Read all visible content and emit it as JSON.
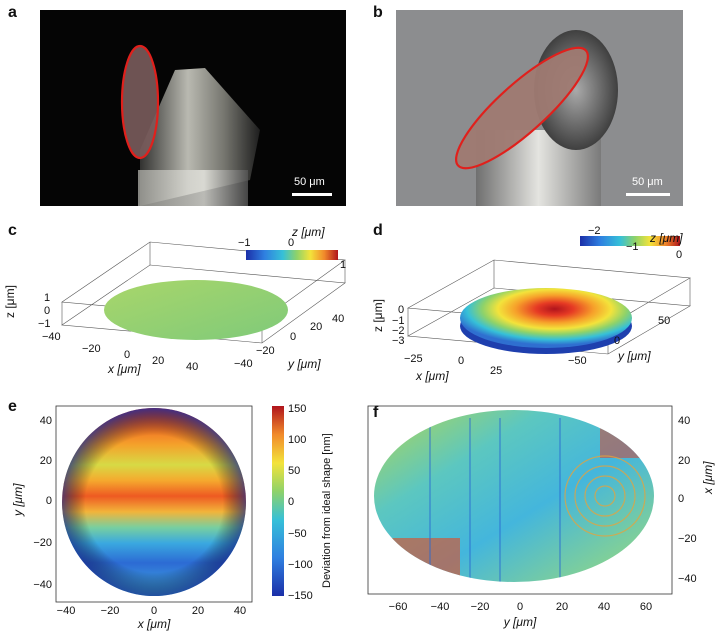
{
  "panels": {
    "a": {
      "letter": "a",
      "scale_label": "50 μm"
    },
    "b": {
      "letter": "b",
      "scale_label": "50 μm"
    },
    "c": {
      "letter": "c",
      "unit_label": "z [μm]",
      "cbar_ticks": [
        "−1",
        "0",
        "1"
      ],
      "z_label": "z [μm]",
      "z_ticks": [
        "1",
        "0",
        "−1"
      ],
      "x_label": "x [μm]",
      "x_ticks": [
        "−40",
        "−20",
        "0",
        "20",
        "40"
      ],
      "y_label": "y [μm]",
      "y_ticks": [
        "−40",
        "−20",
        "0",
        "20",
        "40"
      ]
    },
    "d": {
      "letter": "d",
      "unit_label": "z [μm]",
      "cbar_ticks": [
        "−2",
        "−1",
        "0"
      ],
      "z_label": "z [μm]",
      "z_ticks": [
        "0",
        "−1",
        "−2",
        "−3"
      ],
      "x_label": "x [μm]",
      "x_ticks": [
        "−25",
        "0",
        "25"
      ],
      "y_label": "y [μm]",
      "y_ticks": [
        "50",
        "0",
        "−50"
      ]
    },
    "e": {
      "letter": "e",
      "y_label": "y [μm]",
      "x_label": "x [μm]",
      "y_ticks": [
        "40",
        "20",
        "0",
        "−20",
        "−40"
      ],
      "x_ticks": [
        "−40",
        "−20",
        "0",
        "20",
        "40"
      ],
      "cbar_label": "Deviation from ideal shape [nm]",
      "cbar_ticks": [
        "150",
        "100",
        "50",
        "0",
        "−50",
        "−100",
        "−150"
      ]
    },
    "f": {
      "letter": "f",
      "x_label": "y [μm]",
      "y_label": "x [μm]",
      "x_ticks": [
        "−60",
        "−40",
        "−20",
        "0",
        "20",
        "40",
        "60"
      ],
      "y_ticks": [
        "40",
        "20",
        "0",
        "−20",
        "−40"
      ]
    }
  },
  "colors": {
    "ellipse_outline": "#e0201c",
    "jet_low": "#1b2fa8",
    "jet_high": "#b0141c"
  }
}
